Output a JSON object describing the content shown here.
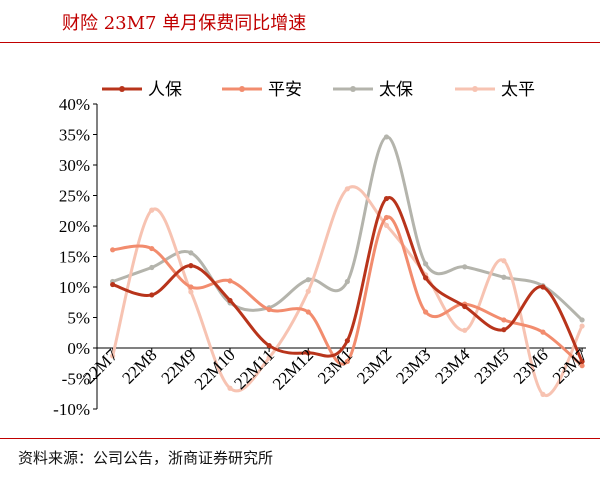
{
  "header": {
    "title": "财险 23M7 单月保费同比增速"
  },
  "footer": {
    "source": "资料来源：公司公告，浙商证券研究所"
  },
  "chart_data": {
    "type": "line",
    "title": "财险 23M7 单月保费同比增速",
    "categories": [
      "22M7",
      "22M8",
      "22M9",
      "22M10",
      "22M11",
      "22M12",
      "23M1",
      "23M2",
      "23M3",
      "23M4",
      "23M5",
      "23M6",
      "23M7"
    ],
    "ylim": [
      -10,
      40
    ],
    "yticks": [
      -10,
      -5,
      0,
      5,
      10,
      15,
      20,
      25,
      30,
      35,
      40
    ],
    "ytick_labels": [
      "-10%",
      "-5%",
      "0%",
      "5%",
      "10%",
      "15%",
      "20%",
      "25%",
      "30%",
      "35%",
      "40%"
    ],
    "grid": false,
    "smooth": true,
    "legend": "top",
    "series": [
      {
        "name": "人保",
        "color": "#b8341b",
        "values": [
          10.4,
          8.7,
          13.5,
          7.8,
          0.4,
          -0.8,
          1.2,
          24.5,
          11.5,
          6.8,
          3.0,
          10.0,
          -2.2
        ]
      },
      {
        "name": "平安",
        "color": "#f28c6e",
        "values": [
          16.1,
          16.3,
          10.0,
          11.0,
          6.3,
          5.9,
          -2.2,
          21.4,
          5.9,
          7.2,
          4.6,
          2.6,
          -2.9
        ]
      },
      {
        "name": "太保",
        "color": "#b4b4ac",
        "values": [
          10.9,
          13.2,
          15.6,
          7.4,
          6.6,
          11.2,
          10.9,
          34.6,
          13.8,
          13.3,
          11.6,
          10.2,
          4.6
        ]
      },
      {
        "name": "太平",
        "color": "#f7c3b2",
        "values": [
          -1.3,
          22.6,
          9.2,
          -6.6,
          -1.6,
          9.3,
          26.1,
          20.1,
          12.0,
          2.9,
          14.3,
          -7.6,
          3.6
        ]
      }
    ]
  }
}
